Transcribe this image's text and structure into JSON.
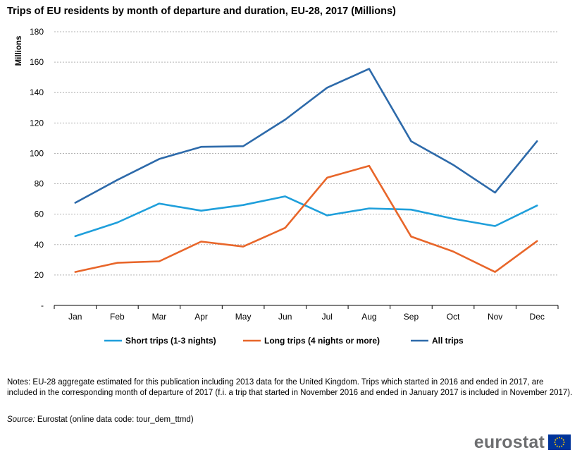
{
  "title": "Trips of EU residents by month of departure and duration, EU-28, 2017 (Millions)",
  "chart_data": {
    "type": "line",
    "ylabel": "Millions",
    "ylim": [
      0,
      180
    ],
    "yticks": [
      "-",
      "20",
      "40",
      "60",
      "80",
      "100",
      "120",
      "140",
      "160",
      "180"
    ],
    "categories": [
      "Jan",
      "Feb",
      "Mar",
      "Apr",
      "May",
      "Jun",
      "Jul",
      "Aug",
      "Sep",
      "Oct",
      "Nov",
      "Dec"
    ],
    "grid": true,
    "legend_position": "bottom",
    "series": [
      {
        "name": "Short trips (1-3 nights)",
        "color": "#1f9fdb",
        "values": [
          45.5,
          54.5,
          67,
          62.3,
          66,
          71.7,
          59.2,
          63.8,
          63,
          57,
          52.2,
          65.7
        ]
      },
      {
        "name": "Long trips (4 nights or more)",
        "color": "#e8662a",
        "values": [
          22,
          28,
          29,
          42,
          38.7,
          51,
          84,
          91.8,
          45.3,
          35.5,
          22,
          42.3
        ]
      },
      {
        "name": "All trips",
        "color": "#2d6aaa",
        "values": [
          67.5,
          82.5,
          96.3,
          104.3,
          104.7,
          122.2,
          143.2,
          155.6,
          108,
          92.5,
          74.2,
          108
        ]
      }
    ]
  },
  "notes": "Notes: EU-28 aggregate estimated for this publication including 2013 data for the United Kingdom. Trips which started in 2016 and ended in 2017, are included in the corresponding month of departure of 2017 (f.i. a trip that started in November 2016 and ended in January 2017 is included in November 2017).",
  "source": {
    "label": "Source:",
    "text": " Eurostat (online data code: tour_dem_ttmd)"
  },
  "logo": {
    "text": "eurostat",
    "flag_icon": "eu-flag-icon"
  }
}
